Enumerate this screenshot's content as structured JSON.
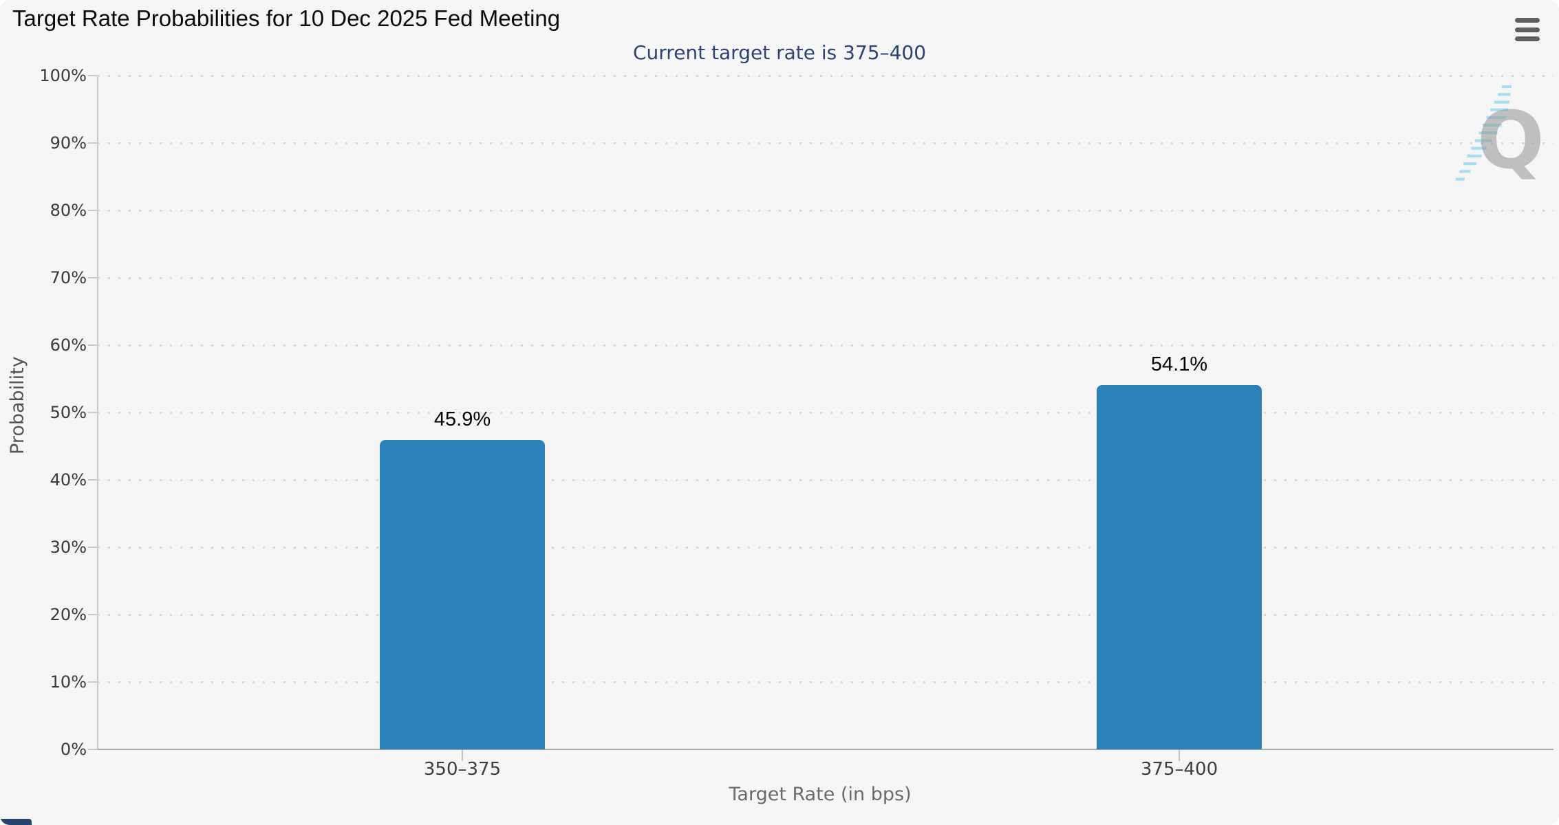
{
  "title": "Target Rate Probabilities for 10 Dec 2025 Fed Meeting",
  "subtitle": "Current target rate is 375–400",
  "menu": {
    "icon": "hamburger-menu-icon"
  },
  "watermark": {
    "letter": "Q",
    "name": "quikstrike-logo"
  },
  "colors": {
    "bar": "#2b80b9",
    "subtitle_text": "#2e4372",
    "panel_background": "#f5f5f5",
    "gridline": "#d8d8d8",
    "watermark_gray": "#9c9c9c",
    "watermark_blue": "#9fdcf2"
  },
  "chart_data": {
    "type": "bar",
    "title": "Target Rate Probabilities for 10 Dec 2025 Fed Meeting",
    "subtitle": "Current target rate is 375–400",
    "categories": [
      "350–375",
      "375–400"
    ],
    "values": [
      45.9,
      54.1
    ],
    "value_labels": [
      "45.9%",
      "54.1%"
    ],
    "xlabel": "Target Rate (in bps)",
    "ylabel": "Probability",
    "ylim": [
      0,
      100
    ],
    "ytick_step": 10,
    "ytick_suffix": "%",
    "grid": "dotted-horizontal",
    "legend": "none"
  }
}
